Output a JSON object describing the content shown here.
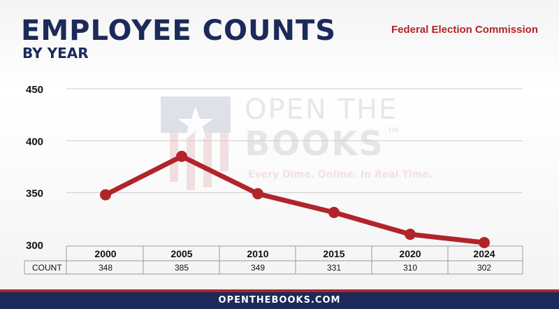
{
  "header": {
    "title": "EMPLOYEE COUNTS",
    "subtitle": "BY YEAR",
    "agency": "Federal Election Commission"
  },
  "watermark": {
    "line1": "OPEN THE",
    "line2": "BOOKS",
    "trademark": "TM",
    "tagline": "Every Dime. Online. In Real Time."
  },
  "footer": {
    "text": "OPENTHEBOOKS.COM"
  },
  "colors": {
    "line": "#b1242a",
    "navy": "#1b2a5a",
    "red_accent": "#b1242a"
  },
  "chart_data": {
    "type": "line",
    "x": [
      "2000",
      "2005",
      "2010",
      "2015",
      "2020",
      "2024"
    ],
    "series": [
      {
        "values": [
          348,
          385,
          349,
          331,
          310,
          302
        ]
      }
    ],
    "ylim": [
      300,
      450
    ],
    "yticks": [
      "300",
      "350",
      "400",
      "450"
    ],
    "grid": true,
    "table_row_label": "COUNT",
    "table_values": [
      "348",
      "385",
      "349",
      "331",
      "310",
      "302"
    ]
  }
}
